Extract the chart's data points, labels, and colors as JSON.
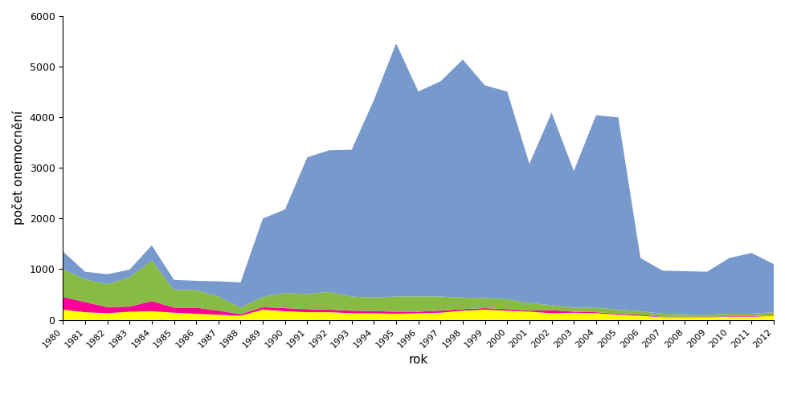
{
  "years": [
    1980,
    1981,
    1982,
    1983,
    1984,
    1985,
    1986,
    1987,
    1988,
    1989,
    1990,
    1991,
    1992,
    1993,
    1994,
    1995,
    1996,
    1997,
    1998,
    1999,
    2000,
    2001,
    2002,
    2003,
    2004,
    2005,
    2006,
    2007,
    2008,
    2009,
    2010,
    2011,
    2012
  ],
  "s_ostatni": [
    200,
    150,
    130,
    160,
    170,
    140,
    120,
    100,
    80,
    200,
    170,
    150,
    150,
    130,
    130,
    120,
    130,
    140,
    180,
    200,
    180,
    160,
    130,
    140,
    130,
    100,
    80,
    50,
    50,
    50,
    60,
    60,
    80
  ],
  "s_agona": [
    250,
    200,
    120,
    100,
    200,
    100,
    120,
    80,
    30,
    50,
    60,
    60,
    50,
    50,
    40,
    40,
    30,
    40,
    30,
    30,
    30,
    20,
    60,
    20,
    20,
    20,
    20,
    10,
    10,
    10,
    10,
    10,
    10
  ],
  "s_typhi_murium": [
    550,
    450,
    450,
    580,
    800,
    350,
    350,
    280,
    130,
    200,
    300,
    300,
    350,
    280,
    270,
    300,
    300,
    280,
    230,
    200,
    200,
    150,
    100,
    80,
    90,
    80,
    70,
    60,
    50,
    40,
    50,
    50,
    60
  ],
  "s_enteritidis": [
    350,
    150,
    200,
    150,
    300,
    200,
    180,
    300,
    500,
    1550,
    1650,
    2700,
    2800,
    2900,
    3900,
    5000,
    4050,
    4250,
    4700,
    4200,
    4100,
    2750,
    3800,
    2700,
    3800,
    3800,
    1050,
    850,
    850,
    850,
    1100,
    1200,
    950
  ],
  "color_ostatni": "#ffff00",
  "color_agona": "#ff0099",
  "color_typhi": "#88bb44",
  "color_enteritidis": "#7799cc",
  "xlabel": "rok",
  "ylabel": "počet onemocnění",
  "ylim": [
    0,
    6000
  ],
  "yticks": [
    0,
    1000,
    2000,
    3000,
    4000,
    5000,
    6000
  ],
  "background_color": "#ffffff"
}
